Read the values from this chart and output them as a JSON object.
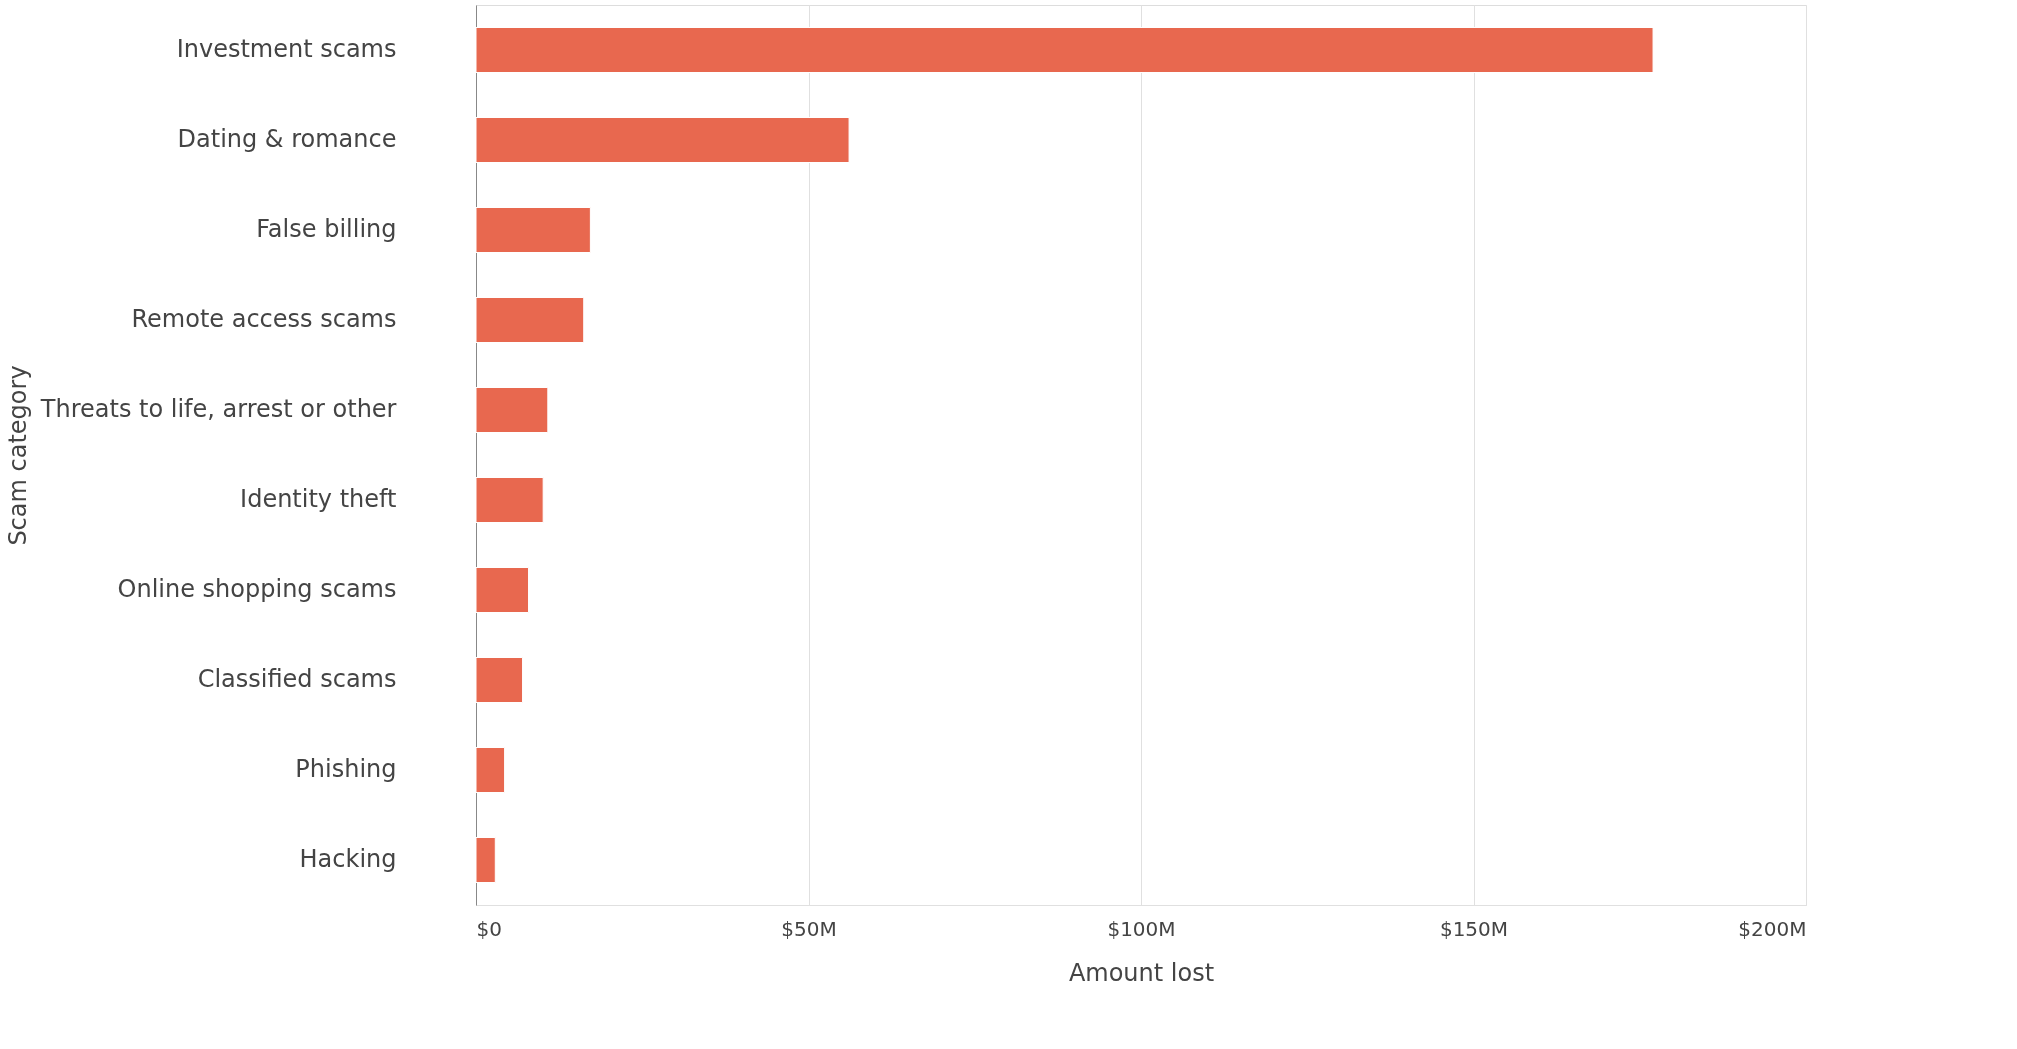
{
  "chart_data": {
    "type": "bar",
    "orientation": "horizontal",
    "xlabel": "Amount lost",
    "ylabel": "Scam category",
    "categories": [
      "Investment scams",
      "Dating & romance",
      "False billing",
      "Remote access scams",
      "Threats to life, arrest or other",
      "Identity theft",
      "Online shopping scams",
      "Classified scams",
      "Phishing",
      "Hacking"
    ],
    "values": [
      177,
      56.1,
      17.2,
      16.2,
      10.8,
      10.1,
      7.9,
      7.0,
      4.3,
      2.9
    ],
    "color": "#e8684f",
    "xlim": [
      0,
      200
    ],
    "xticks": [
      {
        "value": 0,
        "label": "$0"
      },
      {
        "value": 50,
        "label": "$50M"
      },
      {
        "value": 100,
        "label": "$100M"
      },
      {
        "value": 150,
        "label": "$150M"
      },
      {
        "value": 200,
        "label": "$200M"
      }
    ],
    "grid": "x"
  }
}
